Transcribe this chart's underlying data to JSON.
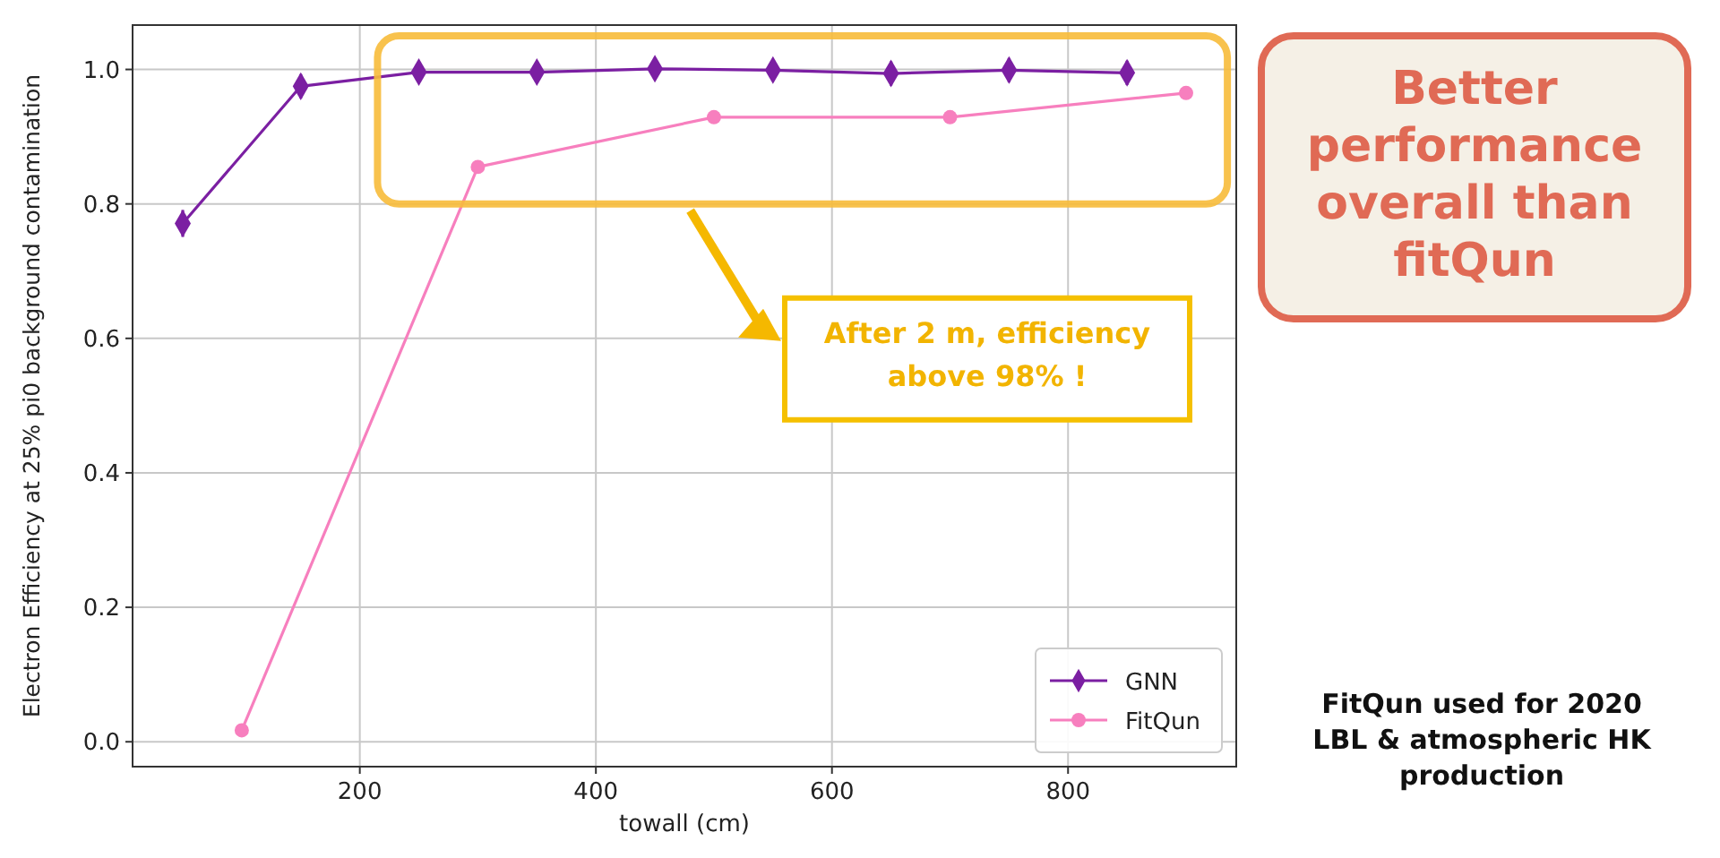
{
  "chart_data": {
    "type": "line",
    "xlabel": "towall (cm)",
    "ylabel": "Electron Efficiency at 25% pi0 background contamination",
    "xlim": [
      7.5,
      942.5
    ],
    "xticks": [
      200,
      400,
      600,
      800
    ],
    "ylim": [
      -0.037,
      1.066
    ],
    "yticks": [
      {
        "value": 0,
        "label": "0.0"
      },
      {
        "value": 0.2,
        "label": "0.2"
      },
      {
        "value": 0.4,
        "label": "0.4"
      },
      {
        "value": 0.6,
        "label": "0.6"
      },
      {
        "value": 0.8,
        "label": "0.8"
      },
      {
        "value": 1,
        "label": "1.0"
      }
    ],
    "grid": true,
    "legend": "bottom right",
    "line_style": "solid",
    "series": [
      {
        "name": "GNN",
        "color": "#7b1fa2",
        "marker": "diamond",
        "x": [
          50,
          150,
          250,
          350,
          450,
          550,
          650,
          750,
          850
        ],
        "values": [
          0.771,
          0.975,
          0.996,
          0.996,
          1.001,
          0.999,
          0.994,
          0.999,
          0.995
        ],
        "errors": [
          0.02,
          0.018,
          0.015,
          0.015,
          0.015,
          0.015,
          0.018,
          0.018,
          0.018
        ]
      },
      {
        "name": "FitQun",
        "color": "#f77fbe",
        "marker": "circle",
        "x": [
          100,
          300,
          500,
          700,
          900
        ],
        "values": [
          0.017,
          0.855,
          0.929,
          0.929,
          0.965
        ]
      }
    ],
    "annotations": [
      "After 2 m, efficiency above 98% !",
      "Better performance overall than fitQun",
      "FitQun used for 2020 LBL & atmospheric HK production"
    ]
  }
}
